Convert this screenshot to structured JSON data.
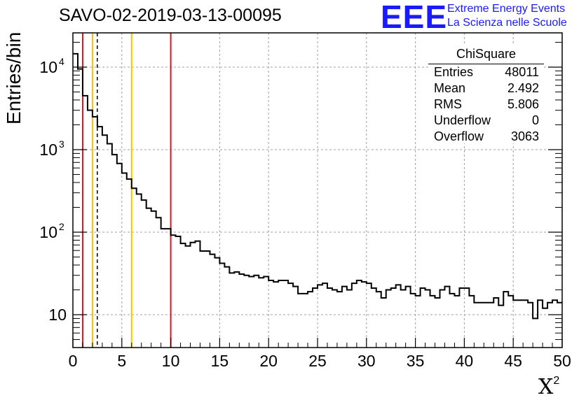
{
  "title": "SAVO-02-2019-03-13-00095",
  "logo": {
    "mark": "EEE",
    "line1": "Extreme Energy Events",
    "line2": "La Scienza nelle Scuole"
  },
  "stats_box": {
    "name": "ChiSquare",
    "rows": [
      {
        "key": "Entries",
        "value": "48011"
      },
      {
        "key": "Mean",
        "value": "2.492"
      },
      {
        "key": "RMS",
        "value": "5.806"
      },
      {
        "key": "Underflow",
        "value": "0"
      },
      {
        "key": "Overflow",
        "value": "3063"
      }
    ]
  },
  "colors": {
    "red_line": "#e8111b",
    "yellow_line": "#f5c400",
    "histogram": "#000000",
    "grid": "#a0a0a0"
  },
  "chart_data": {
    "type": "histogram",
    "title": "SAVO-02-2019-03-13-00095",
    "xlabel": "X²",
    "ylabel": "Entries/bin",
    "xlim": [
      0,
      50
    ],
    "ylim": [
      4,
      26000
    ],
    "yscale": "log",
    "grid": true,
    "bin_width": 0.5,
    "bin_start": 0,
    "x_ticks": [
      0,
      5,
      10,
      15,
      20,
      25,
      30,
      35,
      40,
      45,
      50
    ],
    "y_ticks": [
      {
        "value": 10,
        "label": "10",
        "exp": ""
      },
      {
        "value": 100,
        "label": "10",
        "exp": "2"
      },
      {
        "value": 1000,
        "label": "10",
        "exp": "3"
      },
      {
        "value": 10000,
        "label": "10",
        "exp": "4"
      }
    ],
    "values": [
      14500,
      9500,
      4500,
      3000,
      2500,
      1900,
      1500,
      1180,
      870,
      680,
      520,
      440,
      340,
      290,
      245,
      195,
      180,
      150,
      110,
      110,
      92,
      89,
      73,
      68,
      75,
      78,
      59,
      59,
      54,
      49,
      42,
      38,
      32,
      33,
      31,
      30,
      29,
      30,
      28,
      29,
      26,
      25,
      26,
      26,
      24,
      22,
      18,
      18,
      19,
      21,
      23,
      24,
      21,
      20,
      19,
      22,
      20,
      24,
      26,
      25,
      24,
      21,
      19,
      16,
      20,
      21,
      23,
      20,
      22,
      18,
      17,
      21,
      20,
      17,
      16,
      20,
      22,
      18,
      17,
      21,
      21,
      17,
      14,
      14,
      14,
      14,
      16,
      13,
      19,
      17,
      15,
      15,
      15,
      14,
      9,
      15,
      12,
      14,
      15,
      14
    ],
    "vertical_lines": [
      {
        "x": 1,
        "style": "solid",
        "color": "red"
      },
      {
        "x": 2,
        "style": "solid",
        "color": "yellow"
      },
      {
        "x": 2.492,
        "style": "dashed",
        "color": "black"
      },
      {
        "x": 6,
        "style": "solid",
        "color": "yellow"
      },
      {
        "x": 10,
        "style": "solid",
        "color": "red"
      }
    ]
  }
}
